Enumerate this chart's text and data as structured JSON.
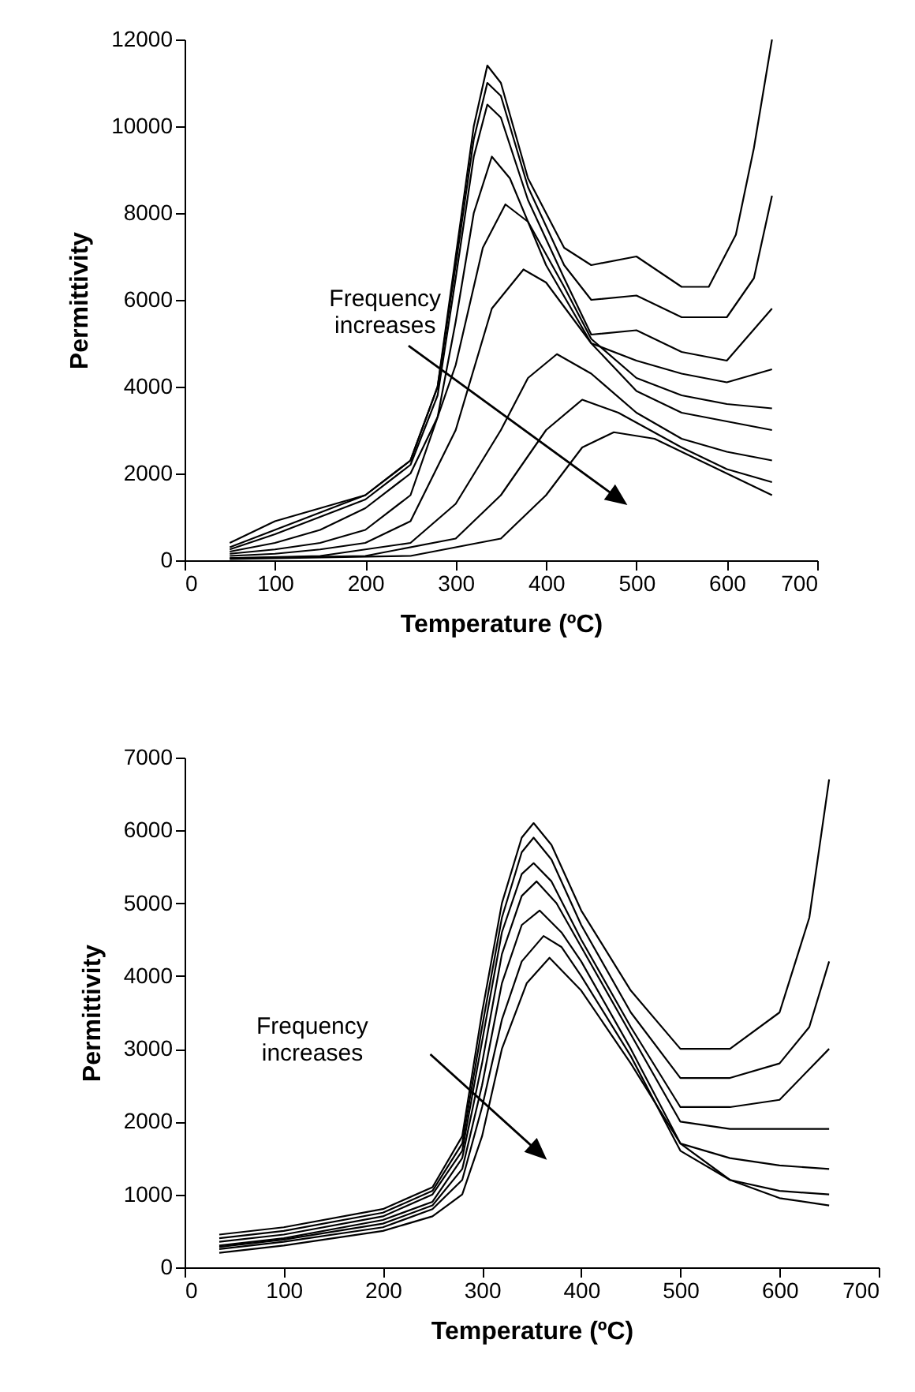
{
  "chart_data": [
    {
      "type": "line",
      "xlabel": "Temperature (ºC)",
      "ylabel": "Permittivity",
      "annotations": [
        "Frequency increases"
      ],
      "xlim": [
        0,
        700
      ],
      "xticks": [
        0,
        100,
        200,
        300,
        400,
        500,
        600,
        700
      ],
      "ylim": [
        0,
        12000
      ],
      "yticks": [
        0,
        2000,
        4000,
        6000,
        8000,
        10000,
        12000
      ],
      "grid": false,
      "legend": false,
      "marker": "none",
      "line_style": "solid",
      "series": [
        {
          "color": "#000000",
          "x": [
            50,
            100,
            150,
            200,
            250,
            280,
            300,
            320,
            335,
            350,
            380,
            420,
            450,
            500,
            550,
            580,
            610,
            630,
            650
          ],
          "values": [
            400,
            900,
            1200,
            1500,
            2300,
            4000,
            7000,
            10000,
            11400,
            11000,
            8800,
            7200,
            6800,
            7000,
            6300,
            6300,
            7500,
            9500,
            12000
          ]
        },
        {
          "color": "#000000",
          "x": [
            50,
            100,
            150,
            200,
            250,
            280,
            300,
            320,
            335,
            350,
            380,
            420,
            450,
            500,
            550,
            600,
            630,
            650
          ],
          "values": [
            300,
            700,
            1100,
            1500,
            2300,
            4000,
            6800,
            9700,
            11000,
            10700,
            8600,
            6800,
            6000,
            6100,
            5600,
            5600,
            6500,
            8400
          ]
        },
        {
          "color": "#000000",
          "x": [
            50,
            100,
            150,
            200,
            250,
            280,
            300,
            320,
            335,
            350,
            380,
            420,
            450,
            500,
            550,
            600,
            650
          ],
          "values": [
            250,
            600,
            1000,
            1400,
            2200,
            3800,
            6500,
            9300,
            10500,
            10200,
            8300,
            6500,
            5200,
            5300,
            4800,
            4600,
            5800
          ]
        },
        {
          "color": "#000000",
          "x": [
            50,
            100,
            150,
            200,
            250,
            280,
            300,
            320,
            340,
            360,
            400,
            450,
            500,
            550,
            600,
            650
          ],
          "values": [
            200,
            400,
            700,
            1200,
            2000,
            3300,
            5500,
            8000,
            9300,
            8800,
            6800,
            5000,
            4600,
            4300,
            4100,
            4400
          ]
        },
        {
          "color": "#000000",
          "x": [
            50,
            100,
            150,
            200,
            250,
            300,
            330,
            355,
            380,
            420,
            450,
            500,
            550,
            600,
            650
          ],
          "values": [
            150,
            250,
            400,
            700,
            1500,
            4500,
            7200,
            8200,
            7800,
            6300,
            5100,
            4200,
            3800,
            3600,
            3500
          ]
        },
        {
          "color": "#000000",
          "x": [
            50,
            100,
            150,
            200,
            250,
            300,
            340,
            375,
            400,
            450,
            500,
            550,
            600,
            650
          ],
          "values": [
            100,
            150,
            250,
            400,
            900,
            3000,
            5800,
            6700,
            6400,
            5000,
            3900,
            3400,
            3200,
            3000
          ]
        },
        {
          "color": "#000000",
          "x": [
            50,
            150,
            250,
            300,
            350,
            380,
            412,
            450,
            500,
            550,
            600,
            650
          ],
          "values": [
            50,
            100,
            400,
            1300,
            3000,
            4200,
            4750,
            4300,
            3400,
            2800,
            2500,
            2300
          ]
        },
        {
          "color": "#000000",
          "x": [
            50,
            200,
            300,
            350,
            400,
            440,
            480,
            550,
            600,
            650
          ],
          "values": [
            50,
            100,
            500,
            1500,
            3000,
            3700,
            3400,
            2600,
            2100,
            1800
          ]
        },
        {
          "color": "#000000",
          "x": [
            50,
            250,
            350,
            400,
            440,
            475,
            520,
            580,
            650
          ],
          "values": [
            30,
            100,
            500,
            1500,
            2600,
            2950,
            2800,
            2200,
            1500
          ]
        }
      ]
    },
    {
      "type": "line",
      "xlabel": "Temperature (ºC)",
      "ylabel": "Permittivity",
      "annotations": [
        "Frequency increases"
      ],
      "xlim": [
        0,
        700
      ],
      "xticks": [
        0,
        100,
        200,
        300,
        400,
        500,
        600,
        700
      ],
      "ylim": [
        0,
        7000
      ],
      "yticks": [
        0,
        1000,
        2000,
        3000,
        4000,
        5000,
        6000,
        7000
      ],
      "grid": false,
      "legend": false,
      "marker": "none",
      "line_style": "solid",
      "series": [
        {
          "color": "#000000",
          "x": [
            35,
            100,
            200,
            250,
            280,
            300,
            320,
            340,
            352,
            370,
            400,
            450,
            500,
            550,
            600,
            630,
            650
          ],
          "values": [
            450,
            550,
            800,
            1100,
            1800,
            3500,
            5000,
            5900,
            6100,
            5800,
            4900,
            3800,
            3000,
            3000,
            3500,
            4800,
            6700
          ]
        },
        {
          "color": "#000000",
          "x": [
            35,
            100,
            200,
            250,
            280,
            300,
            320,
            340,
            352,
            370,
            400,
            450,
            500,
            550,
            600,
            630,
            650
          ],
          "values": [
            400,
            500,
            750,
            1050,
            1700,
            3300,
            4800,
            5700,
            5900,
            5600,
            4700,
            3500,
            2600,
            2600,
            2800,
            3300,
            4200
          ]
        },
        {
          "color": "#000000",
          "x": [
            35,
            100,
            200,
            250,
            280,
            300,
            320,
            340,
            352,
            370,
            400,
            450,
            500,
            550,
            600,
            650
          ],
          "values": [
            350,
            450,
            700,
            1000,
            1600,
            3100,
            4600,
            5400,
            5550,
            5300,
            4500,
            3300,
            2200,
            2200,
            2300,
            3000
          ]
        },
        {
          "color": "#000000",
          "x": [
            35,
            100,
            200,
            250,
            280,
            300,
            320,
            340,
            355,
            375,
            400,
            450,
            500,
            550,
            600,
            650
          ],
          "values": [
            300,
            400,
            650,
            900,
            1500,
            2800,
            4300,
            5100,
            5300,
            5000,
            4400,
            3200,
            2000,
            1900,
            1900,
            1900
          ]
        },
        {
          "color": "#000000",
          "x": [
            35,
            100,
            200,
            250,
            280,
            300,
            320,
            340,
            358,
            380,
            400,
            450,
            500,
            550,
            600,
            650
          ],
          "values": [
            280,
            380,
            600,
            850,
            1350,
            2500,
            3900,
            4700,
            4900,
            4600,
            4200,
            3000,
            1700,
            1500,
            1400,
            1350
          ]
        },
        {
          "color": "#000000",
          "x": [
            35,
            100,
            200,
            250,
            280,
            300,
            320,
            340,
            362,
            380,
            400,
            450,
            500,
            550,
            600,
            650
          ],
          "values": [
            250,
            350,
            550,
            800,
            1200,
            2200,
            3400,
            4200,
            4550,
            4400,
            4000,
            2900,
            1600,
            1200,
            1050,
            1000
          ]
        },
        {
          "color": "#000000",
          "x": [
            35,
            100,
            200,
            250,
            280,
            300,
            320,
            345,
            368,
            400,
            450,
            500,
            550,
            600,
            650
          ],
          "values": [
            200,
            300,
            500,
            700,
            1000,
            1800,
            3000,
            3900,
            4250,
            3800,
            2800,
            1700,
            1200,
            950,
            850
          ]
        }
      ]
    }
  ]
}
